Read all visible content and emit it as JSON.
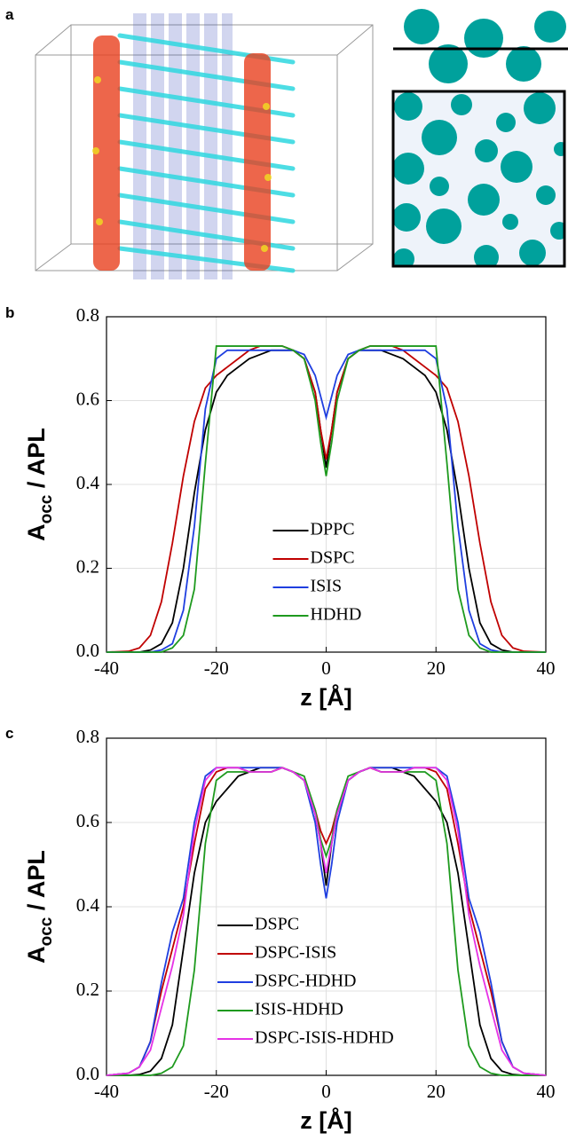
{
  "panel_labels": [
    "a",
    "b",
    "c"
  ],
  "chart_data": [
    {
      "type": "line",
      "ylabel": "A",
      "ylabel_sub": "occ",
      "ylabel_rest": " / APL",
      "xlabel": "z [Å]",
      "x": [
        -40,
        -36,
        -34,
        -32,
        -30,
        -28,
        -26,
        -24,
        -22,
        -20,
        -18,
        -16,
        -14,
        -12,
        -10,
        -8,
        -6,
        -4,
        -2,
        -1,
        0,
        1,
        2,
        4,
        6,
        8,
        10,
        12,
        14,
        16,
        18,
        20,
        22,
        24,
        26,
        28,
        30,
        32,
        34,
        36,
        40
      ],
      "xlim": [
        -40,
        40
      ],
      "xticks": [
        -40,
        -20,
        0,
        20,
        40
      ],
      "ylim": [
        0,
        0.8
      ],
      "yticks": [
        {
          "value": 0,
          "label": "0.0"
        },
        0.2,
        0.4,
        0.6,
        0.8
      ],
      "grid": true,
      "legend": "lower center",
      "series": [
        {
          "name": "DPPC",
          "color": "#000000",
          "values": [
            0,
            0,
            0,
            0.005,
            0.02,
            0.07,
            0.2,
            0.38,
            0.53,
            0.62,
            0.66,
            0.68,
            0.7,
            0.71,
            0.72,
            0.72,
            0.72,
            0.7,
            0.62,
            0.53,
            0.44,
            0.53,
            0.62,
            0.7,
            0.72,
            0.72,
            0.72,
            0.71,
            0.7,
            0.68,
            0.66,
            0.62,
            0.53,
            0.38,
            0.2,
            0.07,
            0.02,
            0.005,
            0,
            0,
            0
          ]
        },
        {
          "name": "DSPC",
          "color": "#c00000",
          "values": [
            0,
            0.002,
            0.01,
            0.04,
            0.12,
            0.26,
            0.42,
            0.55,
            0.63,
            0.66,
            0.68,
            0.7,
            0.72,
            0.73,
            0.73,
            0.73,
            0.72,
            0.7,
            0.62,
            0.53,
            0.46,
            0.53,
            0.62,
            0.7,
            0.72,
            0.73,
            0.73,
            0.73,
            0.72,
            0.7,
            0.68,
            0.66,
            0.63,
            0.55,
            0.42,
            0.26,
            0.12,
            0.04,
            0.01,
            0.002,
            0
          ]
        },
        {
          "name": "ISIS",
          "color": "#1f3fe0",
          "values": [
            0,
            0,
            0,
            0,
            0.005,
            0.02,
            0.1,
            0.3,
            0.58,
            0.7,
            0.72,
            0.72,
            0.72,
            0.72,
            0.72,
            0.72,
            0.72,
            0.71,
            0.66,
            0.61,
            0.56,
            0.61,
            0.66,
            0.71,
            0.72,
            0.72,
            0.72,
            0.72,
            0.72,
            0.72,
            0.72,
            0.7,
            0.58,
            0.3,
            0.1,
            0.02,
            0.005,
            0,
            0,
            0,
            0
          ]
        },
        {
          "name": "HDHD",
          "color": "#1e9a1e",
          "values": [
            0,
            0,
            0,
            0,
            0,
            0.01,
            0.04,
            0.15,
            0.45,
            0.73,
            0.73,
            0.73,
            0.73,
            0.73,
            0.73,
            0.73,
            0.72,
            0.7,
            0.6,
            0.5,
            0.42,
            0.5,
            0.6,
            0.7,
            0.72,
            0.73,
            0.73,
            0.73,
            0.73,
            0.73,
            0.73,
            0.73,
            0.45,
            0.15,
            0.04,
            0.01,
            0,
            0,
            0,
            0,
            0
          ]
        }
      ]
    },
    {
      "type": "line",
      "ylabel": "A",
      "ylabel_sub": "occ",
      "ylabel_rest": " / APL",
      "xlabel": "z [Å]",
      "x": [
        -40,
        -36,
        -34,
        -32,
        -30,
        -28,
        -26,
        -24,
        -22,
        -20,
        -18,
        -16,
        -14,
        -12,
        -10,
        -8,
        -6,
        -4,
        -2,
        -1,
        0,
        1,
        2,
        4,
        6,
        8,
        10,
        12,
        14,
        16,
        18,
        20,
        22,
        24,
        26,
        28,
        30,
        32,
        34,
        36,
        40
      ],
      "xlim": [
        -40,
        40
      ],
      "xticks": [
        -40,
        -20,
        0,
        20,
        40
      ],
      "ylim": [
        0,
        0.8
      ],
      "yticks": [
        {
          "value": 0,
          "label": "0.0"
        },
        0.2,
        0.4,
        0.6,
        0.8
      ],
      "grid": true,
      "legend": "lower left",
      "series": [
        {
          "name": "DSPC",
          "color": "#000000",
          "values": [
            0,
            0,
            0.002,
            0.01,
            0.04,
            0.12,
            0.3,
            0.48,
            0.6,
            0.65,
            0.68,
            0.71,
            0.72,
            0.73,
            0.73,
            0.73,
            0.72,
            0.7,
            0.62,
            0.55,
            0.45,
            0.55,
            0.62,
            0.7,
            0.72,
            0.73,
            0.73,
            0.73,
            0.72,
            0.71,
            0.68,
            0.65,
            0.6,
            0.48,
            0.3,
            0.12,
            0.04,
            0.01,
            0.002,
            0,
            0
          ]
        },
        {
          "name": "DSPC-ISIS",
          "color": "#c00000",
          "values": [
            0,
            0.005,
            0.02,
            0.08,
            0.2,
            0.3,
            0.4,
            0.55,
            0.68,
            0.72,
            0.73,
            0.73,
            0.72,
            0.72,
            0.72,
            0.73,
            0.72,
            0.7,
            0.63,
            0.58,
            0.55,
            0.58,
            0.63,
            0.7,
            0.72,
            0.73,
            0.72,
            0.72,
            0.72,
            0.73,
            0.73,
            0.72,
            0.68,
            0.55,
            0.4,
            0.3,
            0.2,
            0.08,
            0.02,
            0.005,
            0
          ]
        },
        {
          "name": "DSPC-HDHD",
          "color": "#1f3fe0",
          "values": [
            0,
            0.005,
            0.02,
            0.08,
            0.22,
            0.34,
            0.42,
            0.6,
            0.71,
            0.73,
            0.73,
            0.73,
            0.73,
            0.73,
            0.73,
            0.73,
            0.72,
            0.7,
            0.6,
            0.5,
            0.42,
            0.5,
            0.6,
            0.7,
            0.72,
            0.73,
            0.73,
            0.73,
            0.73,
            0.73,
            0.73,
            0.73,
            0.71,
            0.6,
            0.42,
            0.34,
            0.22,
            0.08,
            0.02,
            0.005,
            0
          ]
        },
        {
          "name": "ISIS-HDHD",
          "color": "#1e9a1e",
          "values": [
            0,
            0,
            0,
            0,
            0.005,
            0.02,
            0.07,
            0.25,
            0.55,
            0.7,
            0.72,
            0.72,
            0.72,
            0.72,
            0.72,
            0.73,
            0.72,
            0.71,
            0.63,
            0.56,
            0.52,
            0.56,
            0.63,
            0.71,
            0.72,
            0.73,
            0.72,
            0.72,
            0.72,
            0.72,
            0.72,
            0.7,
            0.55,
            0.25,
            0.07,
            0.02,
            0.005,
            0,
            0,
            0,
            0
          ]
        },
        {
          "name": "DSPC-ISIS-HDHD",
          "color": "#e632e6",
          "values": [
            0,
            0.005,
            0.02,
            0.06,
            0.16,
            0.26,
            0.38,
            0.58,
            0.7,
            0.73,
            0.73,
            0.73,
            0.72,
            0.72,
            0.72,
            0.73,
            0.72,
            0.7,
            0.62,
            0.55,
            0.48,
            0.55,
            0.62,
            0.7,
            0.72,
            0.73,
            0.72,
            0.72,
            0.72,
            0.73,
            0.73,
            0.73,
            0.7,
            0.58,
            0.38,
            0.26,
            0.16,
            0.06,
            0.02,
            0.005,
            0
          ]
        }
      ]
    }
  ]
}
